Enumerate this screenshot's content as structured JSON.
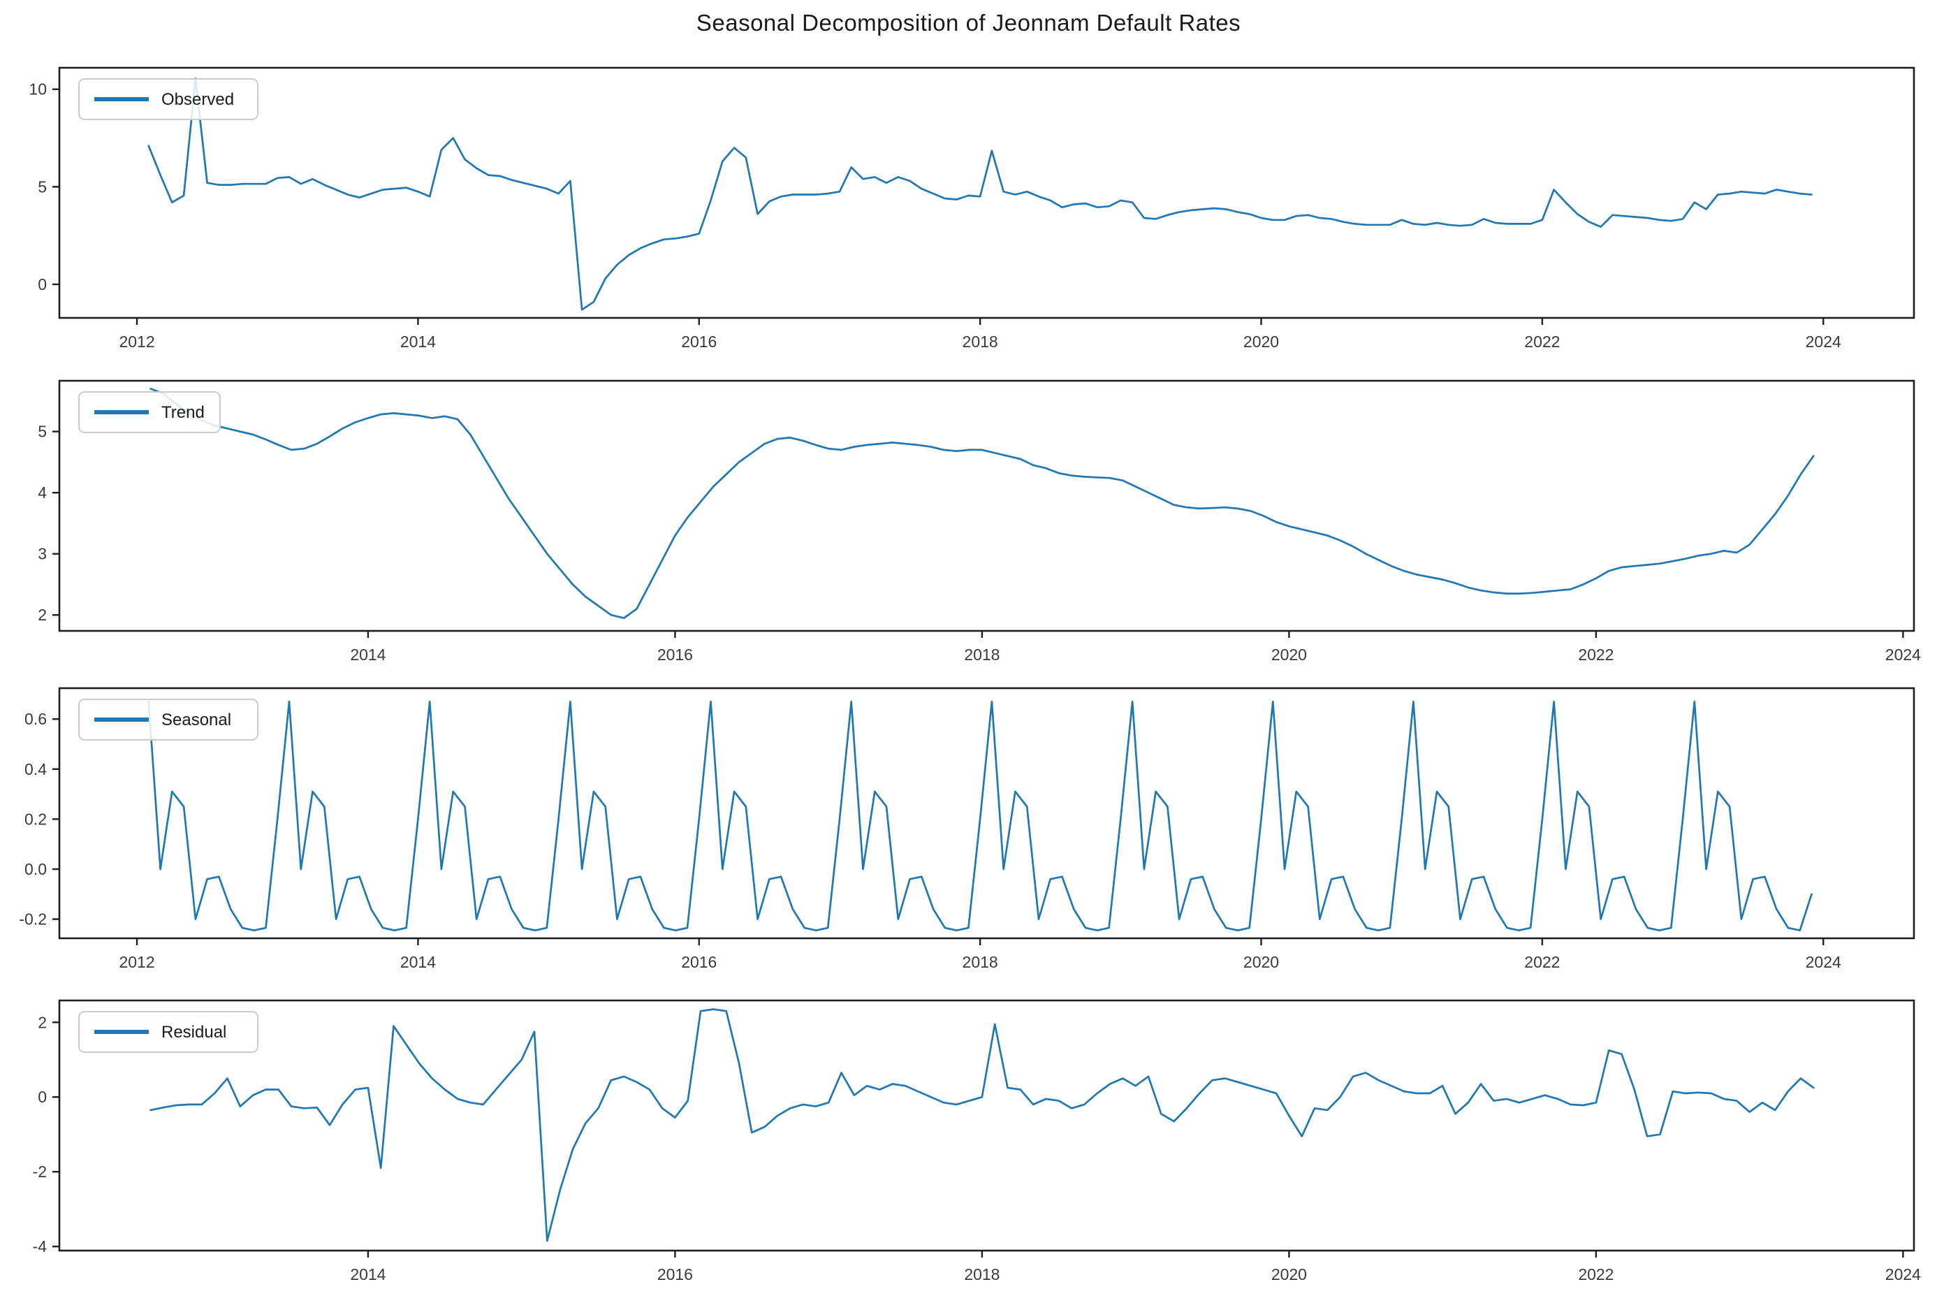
{
  "title": "Seasonal Decomposition of Jeonnam Default Rates",
  "accent_color": "#1f77b4",
  "axis_color": "#1f1f1f",
  "tick_label_color": "#3a3a3a",
  "chart_data": [
    {
      "type": "line",
      "id": "observed",
      "legend": "Observed",
      "x_start_decimal_year": 2012.0833,
      "x_step_months": 1,
      "xlim": [
        2011.448,
        2024.645
      ],
      "ylim": [
        -1.72,
        11.1
      ],
      "yticks": [
        0,
        5,
        10
      ],
      "ytick_labels": [
        "0",
        "5",
        "10"
      ],
      "xticks": [
        2012,
        2014,
        2016,
        2018,
        2020,
        2022,
        2024
      ],
      "xtick_labels": [
        "2012",
        "2014",
        "2016",
        "2018",
        "2020",
        "2022",
        "2024"
      ],
      "values": [
        7.1,
        5.6,
        4.2,
        4.55,
        10.55,
        5.2,
        5.1,
        5.1,
        5.15,
        5.15,
        5.15,
        5.45,
        5.5,
        5.15,
        5.4,
        5.1,
        4.85,
        4.6,
        4.45,
        4.65,
        4.85,
        4.9,
        4.95,
        4.75,
        4.5,
        6.9,
        7.5,
        6.4,
        5.95,
        5.6,
        5.55,
        5.35,
        5.2,
        5.05,
        4.9,
        4.65,
        5.3,
        -1.3,
        -0.9,
        0.3,
        1.0,
        1.5,
        1.85,
        2.1,
        2.3,
        2.35,
        2.45,
        2.6,
        4.3,
        6.3,
        7.0,
        6.5,
        3.6,
        4.25,
        4.5,
        4.6,
        4.6,
        4.6,
        4.65,
        4.75,
        6.0,
        5.4,
        5.5,
        5.2,
        5.5,
        5.3,
        4.9,
        4.65,
        4.4,
        4.35,
        4.55,
        4.5,
        6.85,
        4.75,
        4.6,
        4.75,
        4.5,
        4.3,
        3.95,
        4.1,
        4.15,
        3.95,
        4.0,
        4.3,
        4.2,
        3.4,
        3.35,
        3.55,
        3.7,
        3.8,
        3.85,
        3.9,
        3.85,
        3.7,
        3.6,
        3.4,
        3.3,
        3.3,
        3.5,
        3.55,
        3.4,
        3.35,
        3.2,
        3.1,
        3.05,
        3.05,
        3.05,
        3.3,
        3.1,
        3.05,
        3.15,
        3.05,
        3.0,
        3.05,
        3.35,
        3.15,
        3.1,
        3.1,
        3.1,
        3.3,
        4.85,
        4.2,
        3.6,
        3.2,
        2.95,
        3.55,
        3.5,
        3.45,
        3.4,
        3.3,
        3.25,
        3.35,
        4.2,
        3.85,
        4.6,
        4.65,
        4.75,
        4.7,
        4.65,
        4.85,
        4.75,
        4.65,
        4.6
      ]
    },
    {
      "type": "line",
      "id": "trend",
      "legend": "Trend",
      "x_start_decimal_year": 2012.5833,
      "x_step_months": 1,
      "xlim": [
        2011.989,
        2024.071
      ],
      "ylim": [
        1.74,
        5.83
      ],
      "yticks": [
        2,
        3,
        4,
        5
      ],
      "ytick_labels": [
        "2",
        "3",
        "4",
        "5"
      ],
      "xticks": [
        2014,
        2016,
        2018,
        2020,
        2022,
        2024
      ],
      "xtick_labels": [
        "2014",
        "2016",
        "2018",
        "2020",
        "2022",
        "2024"
      ],
      "values": [
        5.7,
        5.62,
        5.45,
        5.3,
        5.18,
        5.1,
        5.05,
        5.0,
        4.95,
        4.87,
        4.78,
        4.7,
        4.72,
        4.8,
        4.92,
        5.05,
        5.15,
        5.22,
        5.28,
        5.3,
        5.28,
        5.26,
        5.22,
        5.25,
        5.2,
        4.95,
        4.6,
        4.25,
        3.9,
        3.6,
        3.3,
        3.0,
        2.75,
        2.5,
        2.3,
        2.15,
        2.0,
        1.95,
        2.1,
        2.5,
        2.9,
        3.3,
        3.6,
        3.85,
        4.1,
        4.3,
        4.5,
        4.65,
        4.8,
        4.88,
        4.9,
        4.85,
        4.78,
        4.72,
        4.7,
        4.75,
        4.78,
        4.8,
        4.82,
        4.8,
        4.78,
        4.75,
        4.7,
        4.68,
        4.7,
        4.7,
        4.65,
        4.6,
        4.55,
        4.45,
        4.4,
        4.32,
        4.28,
        4.26,
        4.25,
        4.24,
        4.2,
        4.1,
        4.0,
        3.9,
        3.8,
        3.76,
        3.74,
        3.75,
        3.76,
        3.74,
        3.7,
        3.62,
        3.52,
        3.45,
        3.4,
        3.35,
        3.3,
        3.22,
        3.12,
        3.0,
        2.9,
        2.8,
        2.72,
        2.66,
        2.62,
        2.58,
        2.52,
        2.45,
        2.4,
        2.37,
        2.35,
        2.35,
        2.36,
        2.38,
        2.4,
        2.42,
        2.5,
        2.6,
        2.72,
        2.78,
        2.8,
        2.82,
        2.84,
        2.88,
        2.92,
        2.97,
        3.0,
        3.05,
        3.02,
        3.15,
        3.4,
        3.65,
        3.95,
        4.3,
        4.6
      ]
    },
    {
      "type": "line",
      "id": "seasonal",
      "legend": "Seasonal",
      "x_start_decimal_year": 2012.0833,
      "x_step_months": 1,
      "xlim": [
        2011.448,
        2024.645
      ],
      "ylim": [
        -0.2765,
        0.7235
      ],
      "yticks": [
        -0.2,
        0.0,
        0.2,
        0.4,
        0.6
      ],
      "ytick_labels": [
        "-0.2",
        "0.0",
        "0.2",
        "0.4",
        "0.6"
      ],
      "xticks": [
        2012,
        2014,
        2016,
        2018,
        2020,
        2022,
        2024
      ],
      "xtick_labels": [
        "2012",
        "2014",
        "2016",
        "2018",
        "2020",
        "2022",
        "2024"
      ],
      "pattern_start_month": "February",
      "pattern": [
        0.67,
        0.0,
        0.31,
        0.25,
        -0.2,
        -0.04,
        -0.03,
        -0.16,
        -0.235,
        -0.245,
        -0.235,
        0.2
      ],
      "n_points": 143,
      "last_value_override": -0.1
    },
    {
      "type": "line",
      "id": "residual",
      "legend": "Residual",
      "x_start_decimal_year": 2012.5833,
      "x_step_months": 1,
      "xlim": [
        2011.989,
        2024.071
      ],
      "ylim": [
        -4.11,
        2.585
      ],
      "yticks": [
        -4,
        -2,
        0,
        2
      ],
      "ytick_labels": [
        "-4",
        "-2",
        "0",
        "2"
      ],
      "xticks": [
        2014,
        2016,
        2018,
        2020,
        2022,
        2024
      ],
      "xtick_labels": [
        "2014",
        "2016",
        "2018",
        "2020",
        "2022",
        "2024"
      ],
      "values": [
        -0.35,
        -0.28,
        -0.22,
        -0.2,
        -0.2,
        0.1,
        0.5,
        -0.25,
        0.05,
        0.2,
        0.2,
        -0.25,
        -0.3,
        -0.28,
        -0.75,
        -0.2,
        0.2,
        0.25,
        -1.9,
        1.9,
        1.4,
        0.9,
        0.5,
        0.2,
        -0.05,
        -0.15,
        -0.2,
        0.2,
        0.6,
        1.0,
        1.75,
        -3.85,
        -2.5,
        -1.4,
        -0.7,
        -0.3,
        0.45,
        0.55,
        0.4,
        0.2,
        -0.3,
        -0.55,
        -0.1,
        2.3,
        2.35,
        2.3,
        0.9,
        -0.95,
        -0.8,
        -0.5,
        -0.3,
        -0.2,
        -0.25,
        -0.15,
        0.65,
        0.05,
        0.3,
        0.2,
        0.35,
        0.3,
        0.15,
        0.0,
        -0.15,
        -0.2,
        -0.1,
        0.0,
        1.95,
        0.25,
        0.2,
        -0.2,
        -0.05,
        -0.1,
        -0.3,
        -0.2,
        0.1,
        0.35,
        0.5,
        0.3,
        0.55,
        -0.45,
        -0.65,
        -0.3,
        0.1,
        0.45,
        0.5,
        0.4,
        0.3,
        0.2,
        0.1,
        -0.5,
        -1.05,
        -0.3,
        -0.35,
        0.0,
        0.55,
        0.65,
        0.45,
        0.3,
        0.15,
        0.1,
        0.1,
        0.3,
        -0.45,
        -0.15,
        0.35,
        -0.1,
        -0.05,
        -0.15,
        -0.05,
        0.05,
        -0.05,
        -0.2,
        -0.22,
        -0.15,
        1.25,
        1.15,
        0.2,
        -1.05,
        -1.0,
        0.15,
        0.1,
        0.12,
        0.1,
        -0.05,
        -0.1,
        -0.4,
        -0.15,
        -0.35,
        0.15,
        0.5,
        0.25
      ]
    }
  ]
}
